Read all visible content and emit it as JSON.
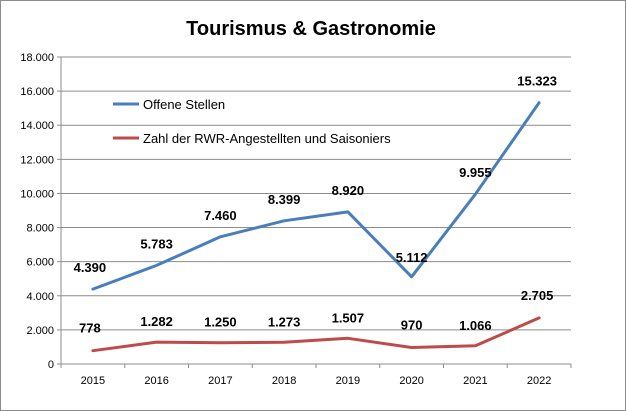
{
  "chart_data": {
    "type": "line",
    "title": "Tourismus & Gastronomie",
    "categories": [
      "2015",
      "2016",
      "2017",
      "2018",
      "2019",
      "2020",
      "2021",
      "2022"
    ],
    "ylim": [
      0,
      18000
    ],
    "y_ticks": [
      0,
      2000,
      4000,
      6000,
      8000,
      10000,
      12000,
      14000,
      16000,
      18000
    ],
    "y_tick_labels": [
      "0",
      "2.000",
      "4.000",
      "6.000",
      "8.000",
      "10.000",
      "12.000",
      "14.000",
      "16.000",
      "18.000"
    ],
    "grid": true,
    "legend_position": "upper-left (inside plot)",
    "series": [
      {
        "name": "Offene Stellen",
        "color": "#4a7ebb",
        "values": [
          4390,
          5783,
          7460,
          8399,
          8920,
          5112,
          9955,
          15323
        ],
        "labels": [
          "4.390",
          "5.783",
          "7.460",
          "8.399",
          "8.920",
          "5.112",
          "9.955",
          "15.323"
        ]
      },
      {
        "name": "Zahl der RWR-Angestellten und Saisoniers",
        "color": "#be4b48",
        "values": [
          778,
          1282,
          1250,
          1273,
          1507,
          970,
          1066,
          2705
        ],
        "labels": [
          "778",
          "1.282",
          "1.250",
          "1.273",
          "1.507",
          "970",
          "1.066",
          "2.705"
        ]
      }
    ]
  }
}
